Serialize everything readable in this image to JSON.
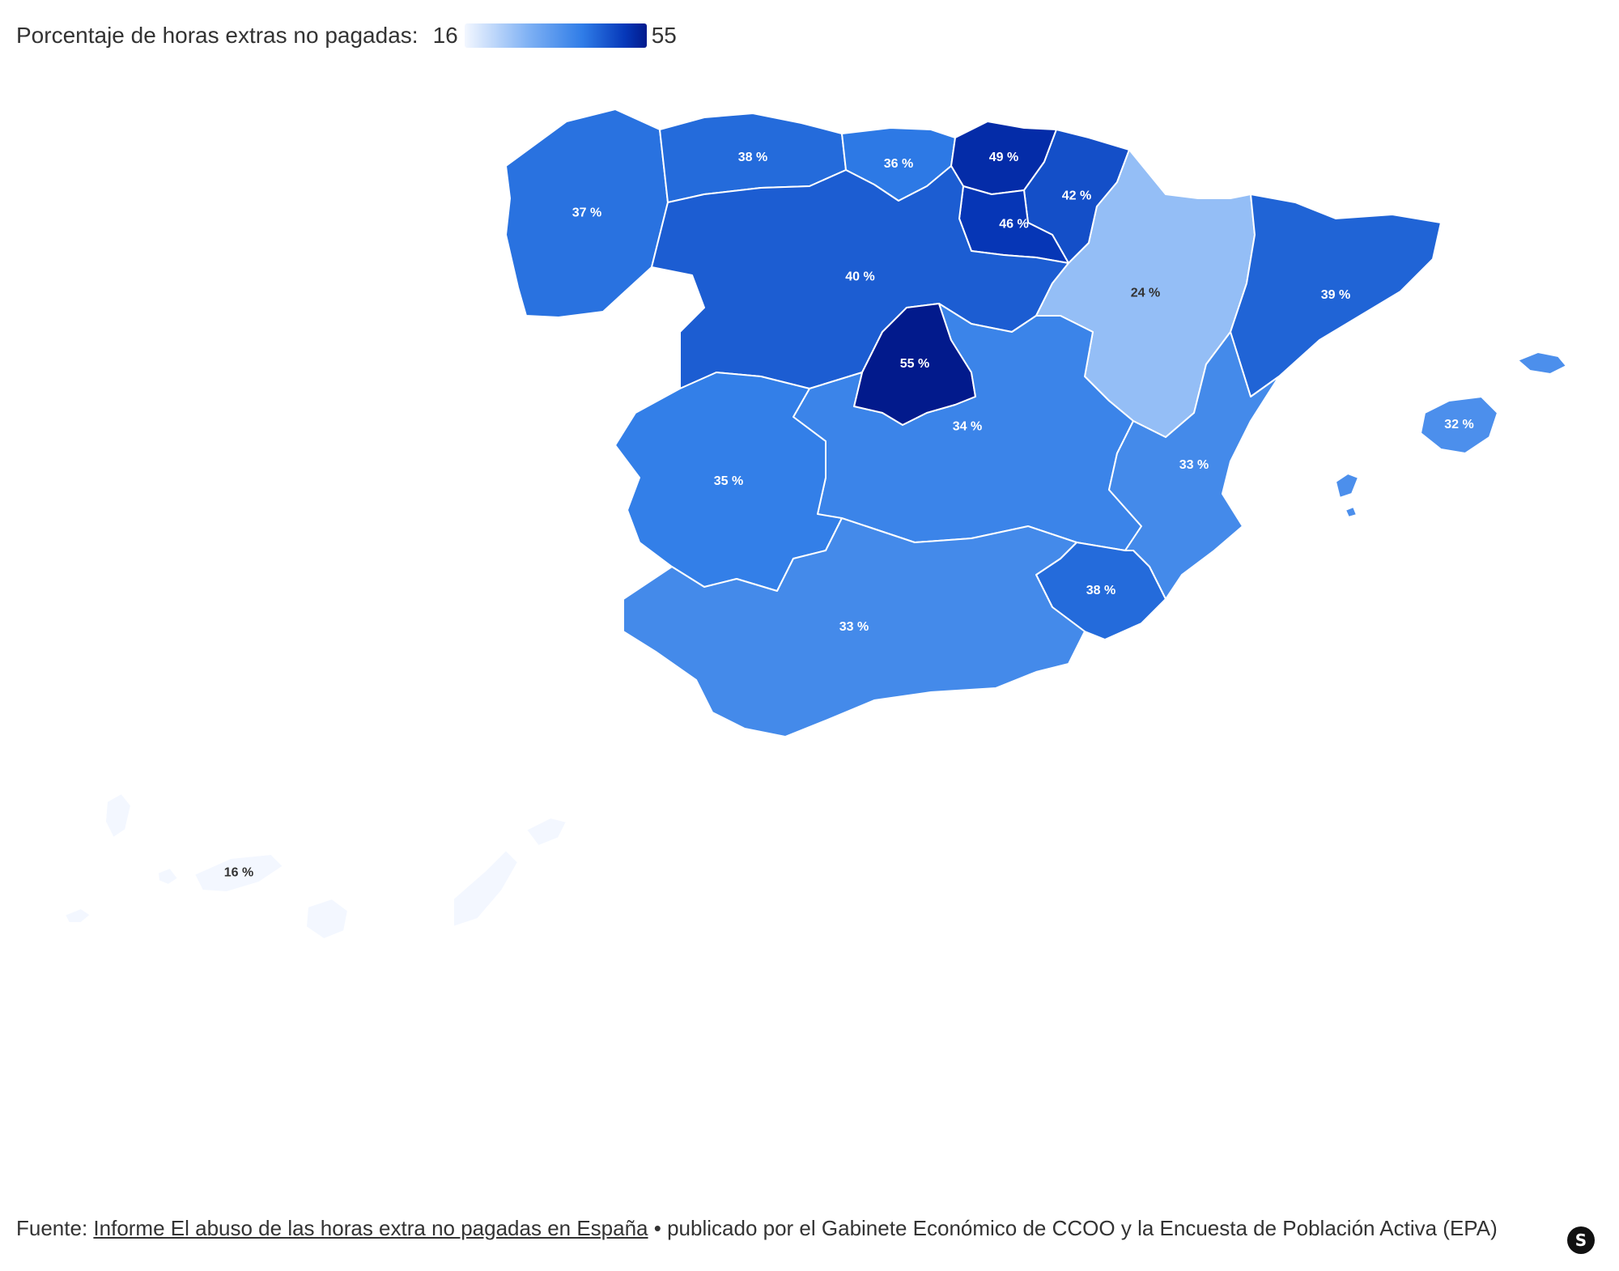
{
  "legend": {
    "label": "Porcentaje de horas extras no pagadas:",
    "min": "16",
    "max": "55",
    "min_value": 16,
    "max_value": 55,
    "colors": [
      "#f3f7ff",
      "#7fb1f4",
      "#2f7ce7",
      "#0638b9",
      "#021a8c"
    ]
  },
  "chart_data": {
    "type": "choropleth",
    "value_range": [
      16,
      55
    ],
    "regions": [
      {
        "id": "galicia",
        "value": 37,
        "label": "37 %"
      },
      {
        "id": "asturias",
        "value": 38,
        "label": "38 %"
      },
      {
        "id": "cantabria",
        "value": 36,
        "label": "36 %"
      },
      {
        "id": "pais-vasco",
        "value": 49,
        "label": "49 %"
      },
      {
        "id": "navarra",
        "value": 42,
        "label": "42 %"
      },
      {
        "id": "la-rioja",
        "value": 46,
        "label": "46 %"
      },
      {
        "id": "aragon",
        "value": 24,
        "label": "24 %"
      },
      {
        "id": "cataluna",
        "value": 39,
        "label": "39 %"
      },
      {
        "id": "castilla-y-leon",
        "value": 40,
        "label": "40 %"
      },
      {
        "id": "madrid",
        "value": 55,
        "label": "55 %"
      },
      {
        "id": "castilla-la-mancha",
        "value": 34,
        "label": "34 %"
      },
      {
        "id": "comunidad-valenciana",
        "value": 33,
        "label": "33 %"
      },
      {
        "id": "baleares",
        "value": 32,
        "label": "32 %"
      },
      {
        "id": "extremadura",
        "value": 35,
        "label": "35 %"
      },
      {
        "id": "murcia",
        "value": 38,
        "label": "38 %"
      },
      {
        "id": "andalucia",
        "value": 33,
        "label": "33 %"
      },
      {
        "id": "canarias",
        "value": 16,
        "label": "16 %"
      }
    ]
  },
  "footer": {
    "prefix": "Fuente:",
    "link_text": "Informe El abuso de las horas extra no pagadas en España",
    "suffix": "• publicado por el Gabinete Económico de CCOO y la Encuesta de Población Activa (EPA)"
  },
  "brand": {
    "logo_letter": "S",
    "icon": "statista-logo-icon"
  }
}
